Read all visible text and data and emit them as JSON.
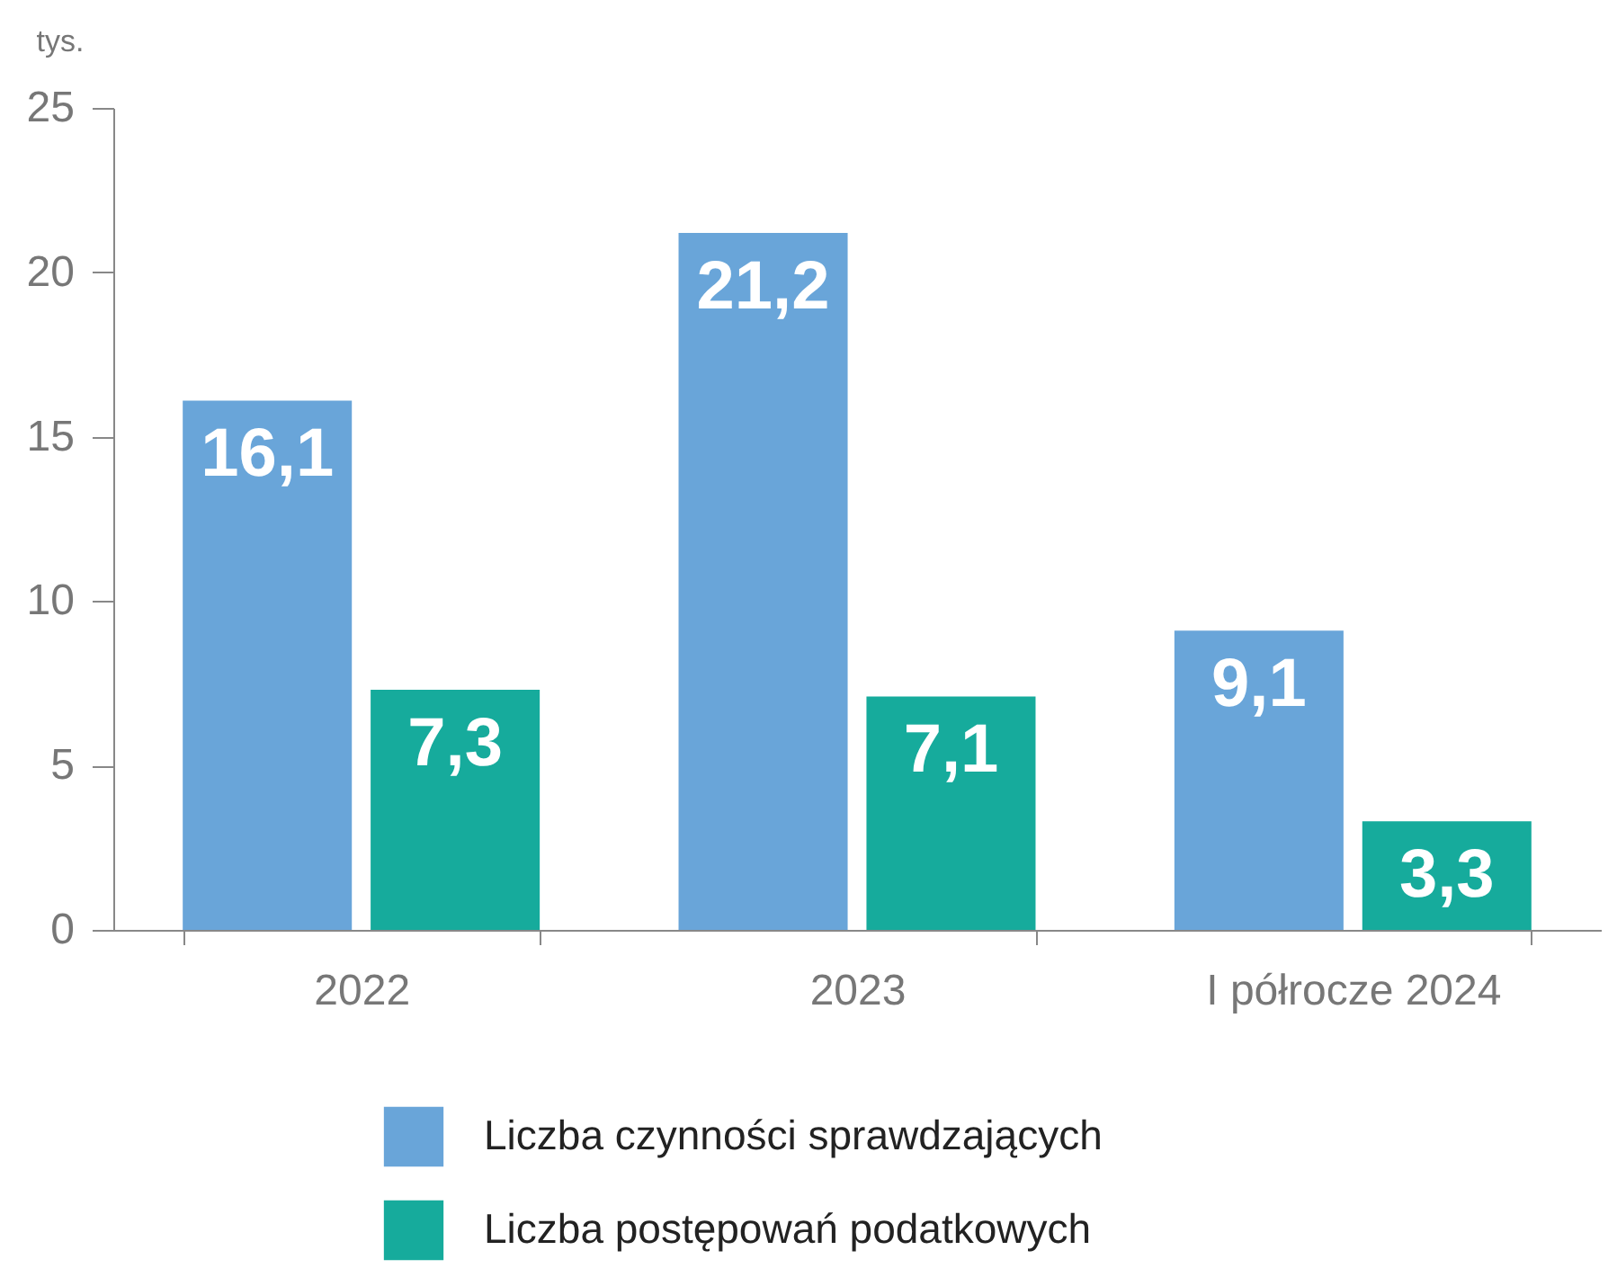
{
  "chart_data": {
    "type": "bar",
    "ylabel": "tys.",
    "categories": [
      "2022",
      "2023",
      "I półrocze 2024"
    ],
    "series": [
      {
        "name": "Liczba czynności sprawdzających",
        "color": "#69a5d9",
        "values": [
          16.1,
          21.2,
          9.1
        ],
        "value_labels": [
          "16,1",
          "21,2",
          "9,1"
        ]
      },
      {
        "name": "Liczba postępowań podatkowych",
        "color": "#16ab9c",
        "values": [
          7.3,
          7.1,
          3.3
        ],
        "value_labels": [
          "7,3",
          "7,1",
          "3,3"
        ]
      }
    ],
    "ylim": [
      0,
      25
    ],
    "yticks": [
      0,
      5,
      10,
      15,
      20,
      25
    ],
    "grid": false,
    "legend": "bottom"
  }
}
